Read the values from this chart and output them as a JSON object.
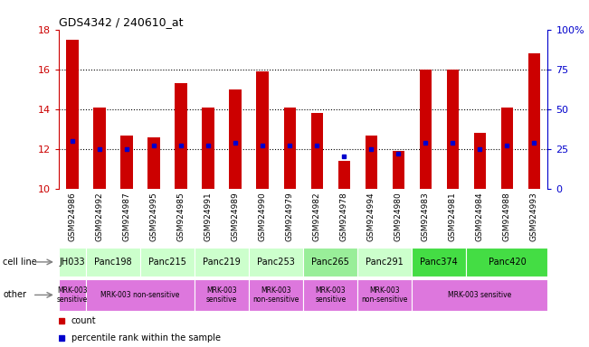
{
  "title": "GDS4342 / 240610_at",
  "samples": [
    "GSM924986",
    "GSM924992",
    "GSM924987",
    "GSM924995",
    "GSM924985",
    "GSM924991",
    "GSM924989",
    "GSM924990",
    "GSM924979",
    "GSM924982",
    "GSM924978",
    "GSM924994",
    "GSM924980",
    "GSM924983",
    "GSM924981",
    "GSM924984",
    "GSM924988",
    "GSM924993"
  ],
  "counts": [
    17.5,
    14.1,
    12.7,
    12.6,
    15.3,
    14.1,
    15.0,
    15.9,
    14.1,
    13.8,
    11.4,
    12.7,
    11.9,
    16.0,
    16.0,
    12.8,
    14.1,
    16.8
  ],
  "percentile_ranks": [
    12.4,
    12.0,
    12.0,
    12.2,
    12.2,
    12.2,
    12.3,
    12.2,
    12.2,
    12.2,
    11.65,
    12.0,
    11.8,
    12.3,
    12.3,
    12.0,
    12.2,
    12.3
  ],
  "ylim_left": [
    10,
    18
  ],
  "ylim_right": [
    0,
    100
  ],
  "yticks_left": [
    10,
    12,
    14,
    16,
    18
  ],
  "yticks_right": [
    0,
    25,
    50,
    75,
    100
  ],
  "bar_color": "#cc0000",
  "marker_color": "#0000cc",
  "cell_lines": [
    {
      "label": "JH033",
      "start": 0,
      "end": 1,
      "color": "#ccffcc"
    },
    {
      "label": "Panc198",
      "start": 1,
      "end": 3,
      "color": "#ccffcc"
    },
    {
      "label": "Panc215",
      "start": 3,
      "end": 5,
      "color": "#ccffcc"
    },
    {
      "label": "Panc219",
      "start": 5,
      "end": 7,
      "color": "#ccffcc"
    },
    {
      "label": "Panc253",
      "start": 7,
      "end": 9,
      "color": "#ccffcc"
    },
    {
      "label": "Panc265",
      "start": 9,
      "end": 11,
      "color": "#99ee99"
    },
    {
      "label": "Panc291",
      "start": 11,
      "end": 13,
      "color": "#ccffcc"
    },
    {
      "label": "Panc374",
      "start": 13,
      "end": 15,
      "color": "#44dd44"
    },
    {
      "label": "Panc420",
      "start": 15,
      "end": 18,
      "color": "#44dd44"
    }
  ],
  "other_groups": [
    {
      "label": "MRK-003\nsensitive",
      "start": 0,
      "end": 1,
      "color": "#dd77dd"
    },
    {
      "label": "MRK-003 non-sensitive",
      "start": 1,
      "end": 5,
      "color": "#dd77dd"
    },
    {
      "label": "MRK-003\nsensitive",
      "start": 5,
      "end": 7,
      "color": "#dd77dd"
    },
    {
      "label": "MRK-003\nnon-sensitive",
      "start": 7,
      "end": 9,
      "color": "#dd77dd"
    },
    {
      "label": "MRK-003\nsensitive",
      "start": 9,
      "end": 11,
      "color": "#dd77dd"
    },
    {
      "label": "MRK-003\nnon-sensitive",
      "start": 11,
      "end": 13,
      "color": "#dd77dd"
    },
    {
      "label": "MRK-003 sensitive",
      "start": 13,
      "end": 18,
      "color": "#dd77dd"
    }
  ],
  "legend_items": [
    {
      "label": "count",
      "color": "#cc0000"
    },
    {
      "label": "percentile rank within the sample",
      "color": "#0000cc"
    }
  ],
  "left_axis_color": "#cc0000",
  "right_axis_color": "#0000cc",
  "tick_label_bg": "#cccccc",
  "grid_yticks": [
    12,
    14,
    16
  ]
}
